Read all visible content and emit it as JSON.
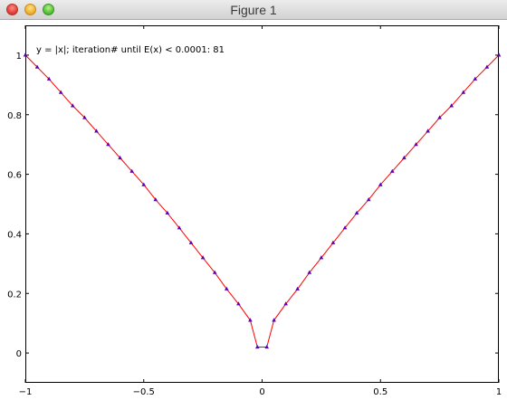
{
  "window": {
    "title": "Figure 1"
  },
  "chart_data": {
    "type": "line",
    "annotation": "y = |x|; iteration# until E(x) < 0.0001: 81",
    "xlim": [
      -1,
      1
    ],
    "ylim": [
      -0.1,
      1.1
    ],
    "xticks": [
      {
        "value": -1,
        "label": "−1"
      },
      {
        "value": -0.5,
        "label": "−0.5"
      },
      {
        "value": 0,
        "label": "0"
      },
      {
        "value": 0.5,
        "label": "0.5"
      },
      {
        "value": 1,
        "label": "1"
      }
    ],
    "yticks": [
      {
        "value": 0,
        "label": "0"
      },
      {
        "value": 0.2,
        "label": "0.2"
      },
      {
        "value": 0.4,
        "label": "0.4"
      },
      {
        "value": 0.6,
        "label": "0.6"
      },
      {
        "value": 0.8,
        "label": "0.8"
      },
      {
        "value": 1,
        "label": "1"
      }
    ],
    "grid": false,
    "series": [
      {
        "style": "line",
        "color": "#ff0000",
        "x": [
          -1,
          -0.95,
          -0.9,
          -0.85,
          -0.8,
          -0.75,
          -0.7,
          -0.65,
          -0.6,
          -0.55,
          -0.5,
          -0.45,
          -0.4,
          -0.35,
          -0.3,
          -0.25,
          -0.2,
          -0.15,
          -0.1,
          -0.05,
          -0.02,
          0.02,
          0.05,
          0.1,
          0.15,
          0.2,
          0.25,
          0.3,
          0.35,
          0.4,
          0.45,
          0.5,
          0.55,
          0.6,
          0.65,
          0.7,
          0.75,
          0.8,
          0.85,
          0.9,
          0.95,
          1
        ],
        "y": [
          1,
          0.96,
          0.92,
          0.875,
          0.83,
          0.79,
          0.745,
          0.7,
          0.655,
          0.61,
          0.565,
          0.515,
          0.47,
          0.42,
          0.37,
          0.32,
          0.27,
          0.215,
          0.165,
          0.11,
          0.02,
          0.02,
          0.11,
          0.165,
          0.215,
          0.27,
          0.32,
          0.37,
          0.42,
          0.47,
          0.515,
          0.565,
          0.61,
          0.655,
          0.7,
          0.745,
          0.79,
          0.83,
          0.875,
          0.92,
          0.96,
          1
        ]
      },
      {
        "style": "markers",
        "color": "#5a00b4",
        "x": [
          -1,
          -0.95,
          -0.9,
          -0.85,
          -0.8,
          -0.75,
          -0.7,
          -0.65,
          -0.6,
          -0.55,
          -0.5,
          -0.45,
          -0.4,
          -0.35,
          -0.3,
          -0.25,
          -0.2,
          -0.15,
          -0.1,
          -0.05,
          -0.02,
          0.02,
          0.05,
          0.1,
          0.15,
          0.2,
          0.25,
          0.3,
          0.35,
          0.4,
          0.45,
          0.5,
          0.55,
          0.6,
          0.65,
          0.7,
          0.75,
          0.8,
          0.85,
          0.9,
          0.95,
          1
        ],
        "y": [
          1,
          0.96,
          0.92,
          0.875,
          0.83,
          0.79,
          0.745,
          0.7,
          0.655,
          0.61,
          0.565,
          0.515,
          0.47,
          0.42,
          0.37,
          0.32,
          0.27,
          0.215,
          0.165,
          0.11,
          0.02,
          0.02,
          0.11,
          0.165,
          0.215,
          0.27,
          0.32,
          0.37,
          0.42,
          0.47,
          0.515,
          0.565,
          0.61,
          0.655,
          0.7,
          0.745,
          0.79,
          0.83,
          0.875,
          0.92,
          0.96,
          1
        ]
      }
    ]
  }
}
